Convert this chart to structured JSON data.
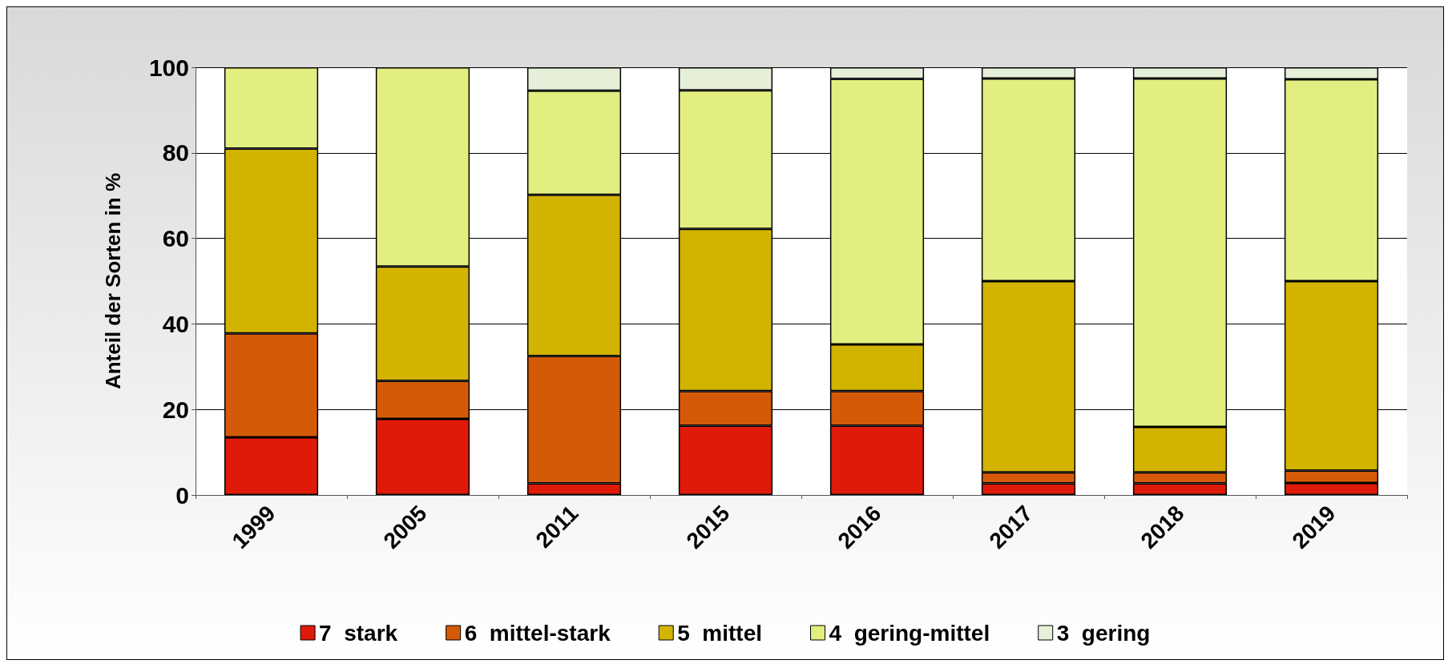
{
  "chart_data": {
    "type": "bar",
    "stacked": true,
    "ylabel": "Anteil der Sorten in %",
    "categories": [
      "1999",
      "2005",
      "2011",
      "2015",
      "2016",
      "2017",
      "2018",
      "2019"
    ],
    "series": [
      {
        "name": "7  stark",
        "color": "#e01a08",
        "values": [
          13.5,
          17.8,
          2.7,
          16.2,
          16.2,
          2.7,
          2.7,
          2.8
        ]
      },
      {
        "name": "6  mittel-stark",
        "color": "#d45a08",
        "values": [
          24.3,
          8.9,
          29.8,
          8.1,
          8.1,
          2.6,
          2.6,
          2.9
        ]
      },
      {
        "name": "5  mittel",
        "color": "#d2b400",
        "values": [
          43.2,
          26.7,
          37.7,
          37.9,
          10.9,
          44.7,
          10.6,
          44.3
        ]
      },
      {
        "name": "4  gering-mittel",
        "color": "#e2ee80",
        "values": [
          19.0,
          46.6,
          24.3,
          32.4,
          62.1,
          47.4,
          81.5,
          47.2
        ]
      },
      {
        "name": "3  gering",
        "color": "#e6efd8",
        "values": [
          0,
          0,
          5.5,
          5.4,
          2.7,
          2.6,
          2.6,
          2.8
        ]
      }
    ],
    "ylim": [
      0,
      100
    ],
    "yticks": [
      0,
      20,
      40,
      60,
      80,
      100
    ],
    "grid": "y",
    "legend": "bottom"
  }
}
